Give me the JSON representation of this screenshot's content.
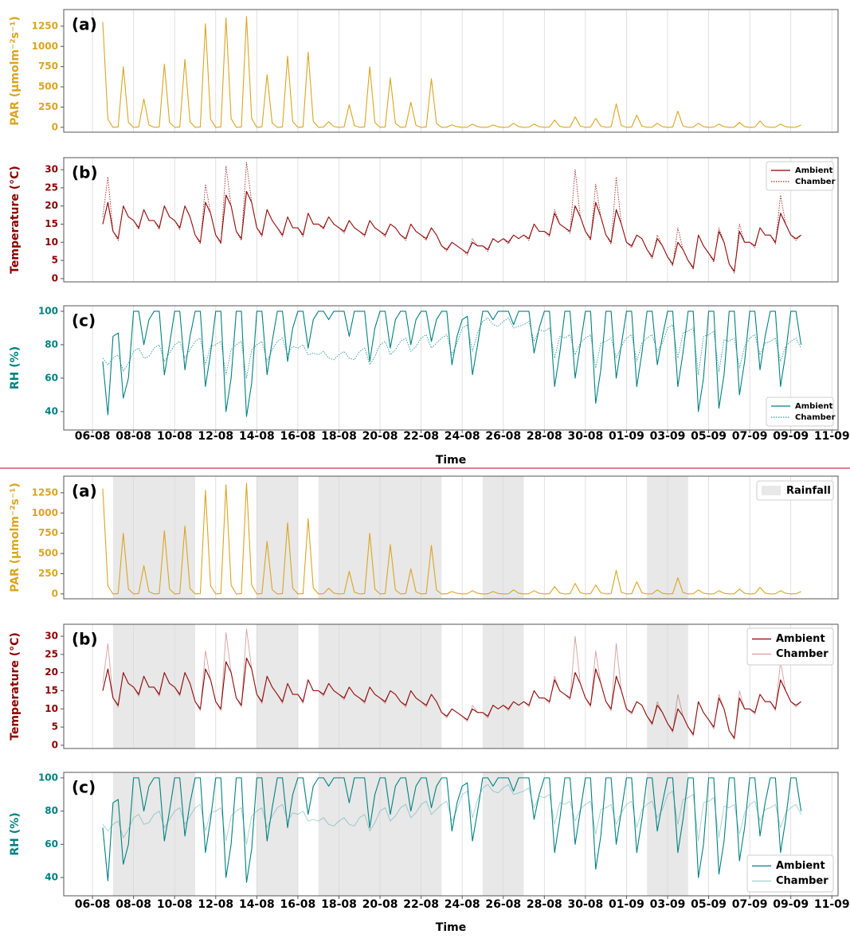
{
  "chart_data": {
    "type": "line",
    "xlabel": "Time",
    "xlim": [
      4.6,
      42.3
    ],
    "xticks": [
      {
        "value": 6,
        "label": "06-08"
      },
      {
        "value": 8,
        "label": "08-08"
      },
      {
        "value": 10,
        "label": "10-08"
      },
      {
        "value": 12,
        "label": "12-08"
      },
      {
        "value": 14,
        "label": "14-08"
      },
      {
        "value": 16,
        "label": "16-08"
      },
      {
        "value": 18,
        "label": "18-08"
      },
      {
        "value": 20,
        "label": "20-08"
      },
      {
        "value": 22,
        "label": "22-08"
      },
      {
        "value": 24,
        "label": "24-08"
      },
      {
        "value": 26,
        "label": "26-08"
      },
      {
        "value": 28,
        "label": "28-08"
      },
      {
        "value": 30,
        "label": "30-08"
      },
      {
        "value": 32,
        "label": "01-09"
      },
      {
        "value": 34,
        "label": "03-09"
      },
      {
        "value": 36,
        "label": "05-09"
      },
      {
        "value": 38,
        "label": "07-09"
      },
      {
        "value": 40,
        "label": "09-09"
      },
      {
        "value": 42,
        "label": "11-09"
      }
    ],
    "grid": true,
    "shaded": {
      "name": "Rainfall",
      "color": "#e8e8e8",
      "legend": "upper right",
      "spans": [
        [
          7,
          11
        ],
        [
          14,
          16
        ],
        [
          17,
          23
        ],
        [
          25,
          27
        ],
        [
          33,
          35
        ]
      ]
    },
    "x": [
      6.5,
      6.75,
      7,
      7.25,
      7.5,
      7.75,
      8,
      8.25,
      8.5,
      8.75,
      9,
      9.25,
      9.5,
      9.75,
      10,
      10.25,
      10.5,
      10.75,
      11,
      11.25,
      11.5,
      11.75,
      12,
      12.25,
      12.5,
      12.75,
      13,
      13.25,
      13.5,
      13.75,
      14,
      14.25,
      14.5,
      14.75,
      15,
      15.25,
      15.5,
      15.75,
      16,
      16.25,
      16.5,
      16.75,
      17,
      17.25,
      17.5,
      17.75,
      18,
      18.25,
      18.5,
      18.75,
      19,
      19.25,
      19.5,
      19.75,
      20,
      20.25,
      20.5,
      20.75,
      21,
      21.25,
      21.5,
      21.75,
      22,
      22.25,
      22.5,
      22.75,
      23,
      23.25,
      23.5,
      23.75,
      24,
      24.25,
      24.5,
      24.75,
      25,
      25.25,
      25.5,
      25.75,
      26,
      26.25,
      26.5,
      26.75,
      27,
      27.25,
      27.5,
      27.75,
      28,
      28.25,
      28.5,
      28.75,
      29,
      29.25,
      29.5,
      29.75,
      30,
      30.25,
      30.5,
      30.75,
      31,
      31.25,
      31.5,
      31.75,
      32,
      32.25,
      32.5,
      32.75,
      33,
      33.25,
      33.5,
      33.75,
      34,
      34.25,
      34.5,
      34.75,
      35,
      35.25,
      35.5,
      35.75,
      36,
      36.25,
      36.5,
      36.75,
      37,
      37.25,
      37.5,
      37.75,
      38,
      38.25,
      38.5,
      38.75,
      39,
      39.25,
      39.5,
      39.75,
      40,
      40.25,
      40.5
    ],
    "panels": [
      {
        "label": "(a)",
        "ylabel": "PAR (μmolm⁻²s⁻¹)",
        "color": "#daa520",
        "ylim": [
          -60,
          1455
        ],
        "yticks": [
          0,
          250,
          500,
          750,
          1000,
          1250
        ],
        "series": [
          {
            "color": "#daa520",
            "values": [
              1300,
              100,
              0,
              5,
              750,
              60,
              0,
              5,
              350,
              28,
              0,
              5,
              780,
              62,
              0,
              5,
              840,
              67,
              0,
              5,
              1280,
              102,
              0,
              5,
              1350,
              108,
              0,
              5,
              1370,
              110,
              0,
              5,
              650,
              52,
              0,
              5,
              880,
              70,
              0,
              5,
              930,
              74,
              0,
              3,
              70,
              10,
              0,
              4,
              280,
              22,
              0,
              5,
              750,
              60,
              0,
              5,
              610,
              49,
              0,
              5,
              310,
              25,
              0,
              5,
              600,
              48,
              0,
              2,
              30,
              8,
              0,
              2,
              40,
              8,
              0,
              2,
              30,
              6,
              0,
              2,
              50,
              8,
              0,
              2,
              40,
              8,
              0,
              3,
              90,
              12,
              0,
              3,
              130,
              15,
              0,
              3,
              110,
              14,
              0,
              4,
              290,
              20,
              0,
              3,
              150,
              14,
              0,
              2,
              50,
              8,
              0,
              3,
              200,
              16,
              0,
              2,
              50,
              8,
              0,
              2,
              40,
              8,
              0,
              2,
              60,
              8,
              0,
              2,
              80,
              10,
              0,
              2,
              40,
              8,
              0,
              2,
              30
            ]
          }
        ]
      },
      {
        "label": "(b)",
        "ylabel": "Temperature (°C)",
        "color": "#8b0000",
        "ylim": [
          -0.9,
          33.3
        ],
        "yticks": [
          0,
          5,
          10,
          15,
          20,
          25,
          30
        ],
        "legend": "upper right",
        "series": [
          {
            "name": "Ambient",
            "color": "#8b0000",
            "dash": false,
            "values": [
              15,
              21,
              13,
              11,
              20,
              17,
              16,
              14,
              19,
              16,
              16,
              14,
              20,
              17,
              16,
              14,
              20,
              17,
              12,
              10,
              21,
              18,
              12,
              10,
              23,
              20,
              13,
              11,
              24,
              21,
              14,
              12,
              19,
              16,
              14,
              12,
              17,
              14,
              14,
              12,
              18,
              15,
              15,
              14,
              17,
              15,
              14,
              13,
              16,
              14,
              13,
              12,
              16,
              14,
              13,
              12,
              15,
              14,
              12,
              11,
              15,
              13,
              12,
              11,
              14,
              12,
              9,
              8,
              10,
              9,
              8,
              7,
              10,
              9,
              9,
              8,
              11,
              10,
              11,
              10,
              12,
              11,
              12,
              11,
              15,
              13,
              13,
              12,
              18,
              15,
              14,
              13,
              20,
              17,
              13,
              11,
              21,
              17,
              12,
              10,
              19,
              15,
              10,
              9,
              12,
              11,
              8,
              6,
              11,
              9,
              6,
              4,
              10,
              8,
              5,
              3,
              12,
              9,
              7,
              5,
              13,
              10,
              4,
              2,
              13,
              10,
              10,
              9,
              14,
              12,
              12,
              10,
              18,
              15,
              12,
              11,
              12
            ]
          },
          {
            "name": "Chamber",
            "color": "#a52a2a",
            "dash": true,
            "values": [
              17,
              28,
              13,
              10.5,
              20,
              17,
              16,
              13.5,
              19,
              16,
              16,
              13.5,
              20,
              17,
              16,
              13.5,
              20,
              17,
              12,
              9.5,
              26,
              18,
              12,
              9.5,
              31,
              20,
              13,
              10.5,
              32,
              21,
              14,
              11.5,
              19,
              16,
              14,
              11.5,
              17,
              14,
              14,
              11.5,
              18,
              15,
              15,
              13.5,
              17,
              15,
              14,
              12.5,
              16,
              14,
              13,
              11.5,
              16,
              14,
              13,
              11.5,
              15,
              14,
              12,
              10.5,
              15,
              13,
              12,
              10.5,
              14,
              12,
              9,
              7.5,
              10,
              9,
              8,
              6.5,
              11,
              9,
              9,
              7.5,
              11,
              10,
              11,
              9.5,
              12,
              11,
              12,
              10.5,
              15,
              13,
              13,
              11.5,
              19,
              15,
              14,
              12.5,
              30,
              17,
              13,
              10.5,
              26,
              17,
              12,
              9.5,
              28,
              15,
              10,
              8.5,
              12,
              11,
              8,
              5.5,
              12,
              9,
              6,
              3.5,
              14,
              8,
              5,
              2.5,
              12,
              9,
              7,
              4.5,
              14,
              10,
              4,
              1.5,
              15,
              10,
              10,
              8.5,
              14,
              12,
              12,
              9.5,
              23,
              15,
              12,
              10.5,
              12
            ]
          }
        ]
      },
      {
        "label": "(c)",
        "ylabel": "RH (%)",
        "color": "#008080",
        "ylim": [
          29,
          103.3
        ],
        "yticks": [
          40,
          60,
          80,
          100
        ],
        "legend": "lower right",
        "series": [
          {
            "name": "Ambient",
            "color": "#008080",
            "dash": false,
            "values": [
              70,
              38,
              85,
              87,
              48,
              60,
              100,
              100,
              80,
              95,
              100,
              100,
              62,
              80,
              100,
              100,
              65,
              85,
              100,
              100,
              55,
              75,
              100,
              100,
              40,
              60,
              100,
              100,
              37,
              57,
              100,
              100,
              62,
              82,
              100,
              100,
              70,
              90,
              100,
              100,
              78,
              95,
              100,
              100,
              95,
              100,
              100,
              100,
              85,
              100,
              100,
              100,
              70,
              90,
              100,
              100,
              78,
              95,
              100,
              100,
              80,
              95,
              100,
              100,
              82,
              95,
              100,
              100,
              68,
              85,
              95,
              97,
              62,
              80,
              100,
              100,
              95,
              100,
              100,
              100,
              92,
              100,
              100,
              100,
              75,
              90,
              100,
              100,
              55,
              75,
              100,
              100,
              60,
              80,
              100,
              100,
              45,
              65,
              100,
              100,
              60,
              80,
              100,
              100,
              55,
              75,
              100,
              100,
              68,
              85,
              100,
              100,
              55,
              75,
              100,
              100,
              40,
              60,
              100,
              100,
              42,
              62,
              100,
              100,
              50,
              70,
              100,
              100,
              65,
              85,
              100,
              100,
              55,
              75,
              100,
              100,
              80
            ]
          },
          {
            "name": "Chamber",
            "color": "#2e9a9a",
            "dash": true,
            "values": [
              72,
              68,
              72,
              74,
              64,
              69,
              76,
              78,
              72,
              73,
              78,
              80,
              70,
              75,
              80,
              82,
              72,
              77,
              82,
              84,
              68,
              79,
              80,
              82,
              62,
              77,
              80,
              82,
              60,
              77,
              80,
              82,
              70,
              77,
              82,
              84,
              74,
              79,
              78,
              80,
              74,
              75,
              74,
              76,
              72,
              71,
              74,
              76,
              72,
              71,
              76,
              78,
              68,
              73,
              80,
              82,
              74,
              77,
              82,
              84,
              76,
              79,
              84,
              86,
              78,
              81,
              84,
              86,
              74,
              81,
              90,
              92,
              76,
              87,
              94,
              96,
              92,
              91,
              94,
              96,
              90,
              91,
              92,
              94,
              82,
              89,
              88,
              90,
              72,
              85,
              84,
              86,
              74,
              81,
              84,
              86,
              66,
              81,
              82,
              84,
              72,
              79,
              84,
              86,
              70,
              81,
              84,
              86,
              76,
              81,
              90,
              92,
              72,
              87,
              88,
              90,
              62,
              85,
              86,
              88,
              64,
              83,
              82,
              84,
              66,
              79,
              84,
              86,
              74,
              81,
              82,
              84,
              70,
              79,
              82,
              84,
              78
            ]
          }
        ]
      }
    ]
  }
}
